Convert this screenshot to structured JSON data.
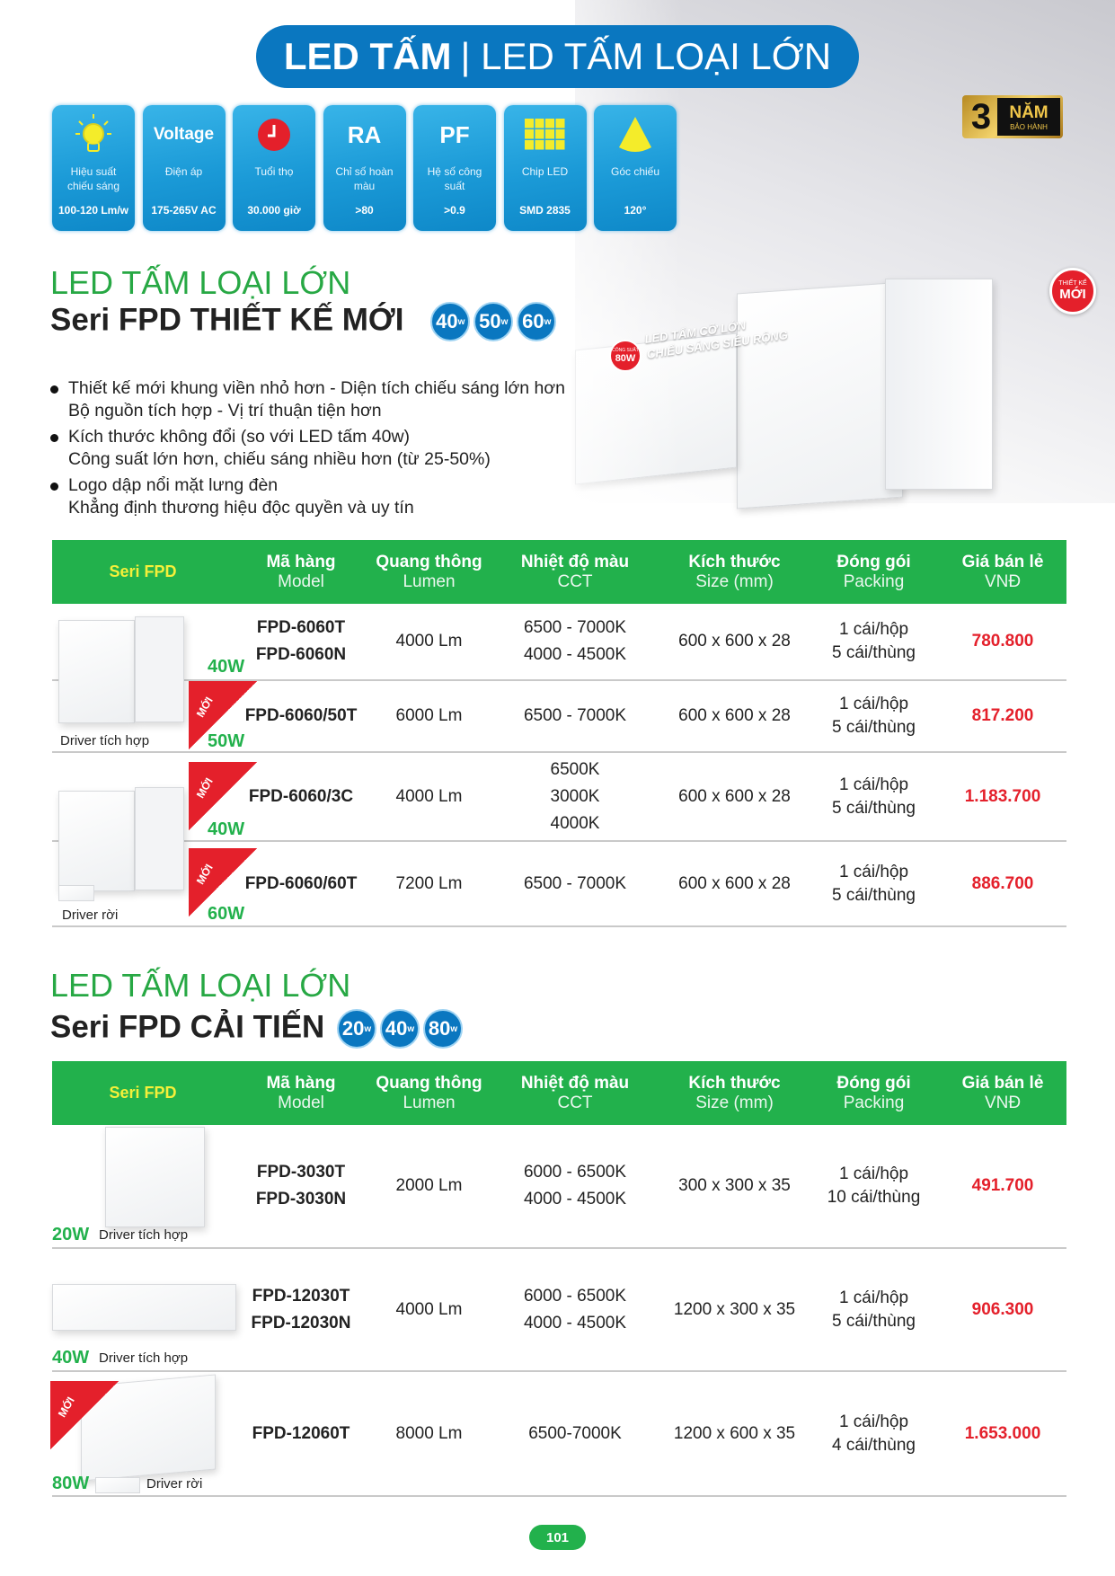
{
  "title": {
    "bold": "LED TẤM",
    "rest": "| LED TẤM LOẠI LỚN"
  },
  "features": [
    {
      "icon": "light-bulb-icon",
      "icon_text": "",
      "label": "Hiệu suất chiếu sáng",
      "value": "100-120 Lm/w"
    },
    {
      "icon": "voltage-icon",
      "icon_text": "Voltage",
      "label": "Điện áp",
      "value": "175-265V AC"
    },
    {
      "icon": "clock-icon",
      "icon_text": "",
      "label": "Tuổi thọ",
      "value": "30.000 giờ"
    },
    {
      "icon": "ra-icon",
      "icon_text": "RA",
      "label": "Chỉ số hoàn màu",
      "value": ">80"
    },
    {
      "icon": "pf-icon",
      "icon_text": "PF",
      "label": "Hệ số công suất",
      "value": ">0.9"
    },
    {
      "icon": "led-chip-icon",
      "icon_text": "",
      "label": "Chip LED",
      "value": "SMD 2835"
    },
    {
      "icon": "beam-angle-icon",
      "icon_text": "",
      "label": "Góc chiếu",
      "value": "120°"
    }
  ],
  "warranty": {
    "number": "3",
    "text": "NĂM",
    "sub": "BẢO HÀNH"
  },
  "hero": {
    "power_label": "CÔNG SUẤT",
    "power": "80W",
    "tagline1": "LED TẤM CỠ LỚN",
    "tagline2": "CHIẾU SÁNG SIÊU RỘNG",
    "new1": "THIẾT KẾ",
    "new2": "MỚI"
  },
  "headers": [
    {
      "l1": "Seri FPD",
      "l2": ""
    },
    {
      "l1": "Mã hàng",
      "l2": "Model"
    },
    {
      "l1": "Quang thông",
      "l2": "Lumen"
    },
    {
      "l1": "Nhiệt độ màu",
      "l2": "CCT"
    },
    {
      "l1": "Kích thước",
      "l2": "Size (mm)"
    },
    {
      "l1": "Đóng gói",
      "l2": "Packing"
    },
    {
      "l1": "Giá bán lẻ",
      "l2": "VNĐ"
    }
  ],
  "section1": {
    "heading": "LED TẤM LOẠI LỚN",
    "subheading": "Seri FPD THIẾT KẾ MỚI",
    "watts": [
      "40",
      "50",
      "60"
    ],
    "bullets": [
      [
        "Thiết kế mới khung viền nhỏ hơn - Diện tích chiếu sáng lớn hơn",
        "Bộ nguồn tích hợp - Vị trí thuận tiện hơn"
      ],
      [
        "Kích thước không đổi (so với LED tấm 40w)",
        "Công suất lớn hơn, chiếu sáng nhiều hơn (từ 25-50%)"
      ],
      [
        "Logo dập nổi mặt lưng đèn",
        "Khẳng định thương hiệu độc quyền và uy tín"
      ]
    ],
    "rows": [
      {
        "watt": "40W",
        "new": false,
        "model": [
          "FPD-6060T",
          "FPD-6060N"
        ],
        "lumen": "4000 Lm",
        "cct": [
          "6500 - 7000K",
          "4000 - 4500K"
        ],
        "size": "600 x 600 x 28",
        "packing": [
          "1 cái/hộp",
          "5 cái/thùng"
        ],
        "price": "780.800"
      },
      {
        "watt": "50W",
        "new": true,
        "model": [
          "FPD-6060/50T"
        ],
        "lumen": "6000 Lm",
        "cct": [
          "6500 - 7000K"
        ],
        "size": "600 x 600 x 28",
        "packing": [
          "1 cái/hộp",
          "5 cái/thùng"
        ],
        "price": "817.200"
      },
      {
        "watt": "40W",
        "new": true,
        "model": [
          "FPD-6060/3C"
        ],
        "lumen": "4000 Lm",
        "cct": [
          "6500K",
          "3000K",
          "4000K"
        ],
        "size": "600 x 600 x 28",
        "packing": [
          "1 cái/hộp",
          "5 cái/thùng"
        ],
        "price": "1.183.700"
      },
      {
        "watt": "60W",
        "new": true,
        "model": [
          "FPD-6060/60T"
        ],
        "lumen": "7200 Lm",
        "cct": [
          "6500 - 7000K"
        ],
        "size": "600 x 600 x 28",
        "packing": [
          "1 cái/hộp",
          "5 cái/thùng"
        ],
        "price": "886.700"
      }
    ],
    "driver_labels": [
      "Driver tích hợp",
      "Driver rời"
    ],
    "new_label": "MỚI"
  },
  "section2": {
    "heading": "LED TẤM LOẠI LỚN",
    "subheading": "Seri FPD CẢI TIẾN",
    "watts": [
      "20",
      "40",
      "80"
    ],
    "rows": [
      {
        "watt": "20W",
        "driver": "Driver tích hợp",
        "new": false,
        "model": [
          "FPD-3030T",
          "FPD-3030N"
        ],
        "lumen": "2000 Lm",
        "cct": [
          "6000 - 6500K",
          "4000 - 4500K"
        ],
        "size": "300 x 300 x 35",
        "packing": [
          "1 cái/hộp",
          "10 cái/thùng"
        ],
        "price": "491.700"
      },
      {
        "watt": "40W",
        "driver": "Driver tích hợp",
        "new": false,
        "model": [
          "FPD-12030T",
          "FPD-12030N"
        ],
        "lumen": "4000 Lm",
        "cct": [
          "6000 - 6500K",
          "4000 - 4500K"
        ],
        "size": "1200 x 300 x 35",
        "packing": [
          "1 cái/hộp",
          "5 cái/thùng"
        ],
        "price": "906.300"
      },
      {
        "watt": "80W",
        "driver": "Driver rời",
        "new": true,
        "model": [
          "FPD-12060T"
        ],
        "lumen": "8000 Lm",
        "cct": [
          "6500-7000K"
        ],
        "size": "1200 x 600 x 35",
        "packing": [
          "1 cái/hộp",
          "4 cái/thùng"
        ],
        "price": "1.653.000"
      }
    ]
  },
  "page_number": "101",
  "colors": {
    "green": "#22b14c",
    "blue": "#0a77c0",
    "red": "#e4202b",
    "seri_yellow": "#f5f03a"
  }
}
